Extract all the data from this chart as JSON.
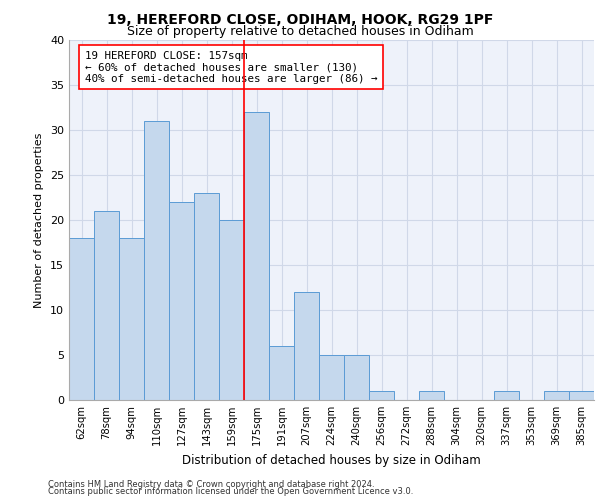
{
  "title_line1": "19, HEREFORD CLOSE, ODIHAM, HOOK, RG29 1PF",
  "title_line2": "Size of property relative to detached houses in Odiham",
  "xlabel": "Distribution of detached houses by size in Odiham",
  "ylabel": "Number of detached properties",
  "categories": [
    "62sqm",
    "78sqm",
    "94sqm",
    "110sqm",
    "127sqm",
    "143sqm",
    "159sqm",
    "175sqm",
    "191sqm",
    "207sqm",
    "224sqm",
    "240sqm",
    "256sqm",
    "272sqm",
    "288sqm",
    "304sqm",
    "320sqm",
    "337sqm",
    "353sqm",
    "369sqm",
    "385sqm"
  ],
  "values": [
    18,
    21,
    18,
    31,
    22,
    23,
    20,
    32,
    6,
    12,
    5,
    5,
    1,
    0,
    1,
    0,
    0,
    1,
    0,
    1,
    1
  ],
  "bar_color": "#c5d8ed",
  "bar_edge_color": "#5b9bd5",
  "red_line_x": 6.5,
  "annotation_text": "19 HEREFORD CLOSE: 157sqm\n← 60% of detached houses are smaller (130)\n40% of semi-detached houses are larger (86) →",
  "ylim": [
    0,
    40
  ],
  "yticks": [
    0,
    5,
    10,
    15,
    20,
    25,
    30,
    35,
    40
  ],
  "grid_color": "#d0d8e8",
  "background_color": "#eef2fa",
  "footer_line1": "Contains HM Land Registry data © Crown copyright and database right 2024.",
  "footer_line2": "Contains public sector information licensed under the Open Government Licence v3.0."
}
